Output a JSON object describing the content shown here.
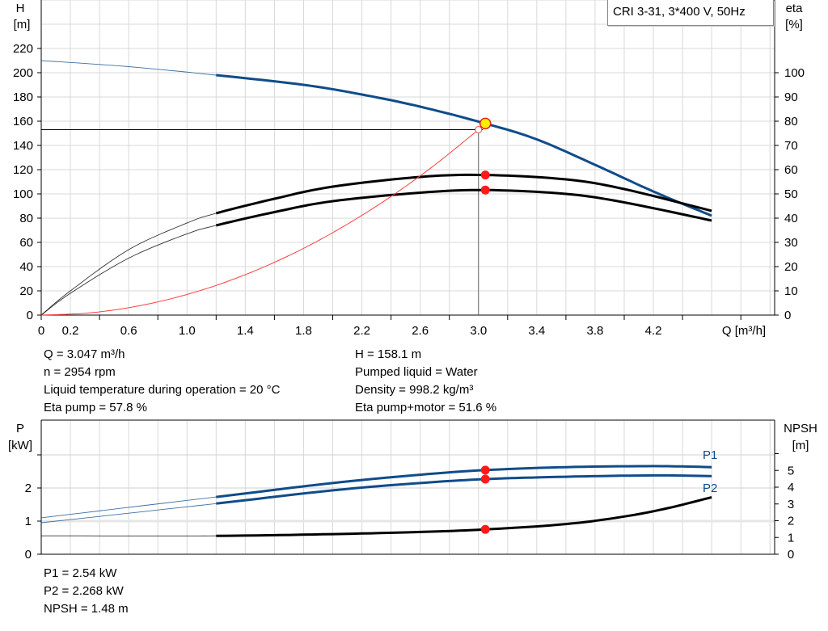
{
  "chart_data": [
    {
      "type": "line",
      "title": "CRI 3-31, 3*400 V, 50Hz",
      "xlabel": "Q [m³/h]",
      "ylabel_left": [
        "H",
        "[m]"
      ],
      "ylabel_right": [
        "eta",
        "[%]"
      ],
      "xlim": [
        0,
        5.0
      ],
      "ylim_left": [
        0,
        260
      ],
      "ylim_right": [
        0,
        130
      ],
      "x_ticks": [
        "0",
        "0.2",
        "0.6",
        "1.0",
        "1.4",
        "1.8",
        "2.2",
        "2.6",
        "3.0",
        "3.4",
        "3.8",
        "4.2"
      ],
      "x_tick_values": [
        0,
        0.2,
        0.6,
        1.0,
        1.4,
        1.8,
        2.2,
        2.6,
        3.0,
        3.4,
        3.8,
        4.2
      ],
      "y_left_ticks": [
        0,
        20,
        40,
        60,
        80,
        100,
        120,
        140,
        160,
        180,
        200,
        220
      ],
      "y_right_ticks": [
        0,
        10,
        20,
        30,
        40,
        50,
        60,
        70,
        80,
        90,
        100
      ],
      "grid": true,
      "series": [
        {
          "key": "H",
          "axis": "left",
          "color": "#0f4c8a",
          "thick_from": 1.2,
          "points": [
            [
              0,
              210
            ],
            [
              0.6,
              205
            ],
            [
              1.2,
              198
            ],
            [
              1.8,
              190
            ],
            [
              2.2,
              182
            ],
            [
              2.6,
              172
            ],
            [
              3.047,
              158.1
            ],
            [
              3.4,
              145
            ],
            [
              3.8,
              124
            ],
            [
              4.2,
              102
            ],
            [
              4.6,
              82
            ]
          ]
        },
        {
          "key": "eta_pump",
          "axis": "right",
          "color": "#000000",
          "thick_from": 1.2,
          "points": [
            [
              0,
              0
            ],
            [
              0.2,
              10
            ],
            [
              0.6,
              27
            ],
            [
              1.0,
              38
            ],
            [
              1.2,
              42
            ],
            [
              1.6,
              48
            ],
            [
              2.0,
              53
            ],
            [
              2.6,
              57
            ],
            [
              3.047,
              57.8
            ],
            [
              3.6,
              56
            ],
            [
              4.0,
              52
            ],
            [
              4.6,
              43
            ]
          ]
        },
        {
          "key": "eta_pump_motor",
          "axis": "right",
          "color": "#000000",
          "thick_from": 1.2,
          "points": [
            [
              0,
              0
            ],
            [
              0.2,
              9
            ],
            [
              0.6,
              23.5
            ],
            [
              1.0,
              33.5
            ],
            [
              1.2,
              37
            ],
            [
              1.6,
              42.5
            ],
            [
              2.0,
              47
            ],
            [
              2.6,
              50.5
            ],
            [
              3.047,
              51.6
            ],
            [
              3.6,
              50
            ],
            [
              4.0,
              46.5
            ],
            [
              4.6,
              39
            ]
          ]
        },
        {
          "key": "system_curve",
          "axis": "left",
          "color": "#ff4040",
          "thick_from": 99,
          "points": [
            [
              0,
              0
            ],
            [
              0.3,
              1.5
            ],
            [
              0.6,
              6.1
            ],
            [
              0.9,
              13.8
            ],
            [
              1.2,
              24.5
            ],
            [
              1.5,
              38.3
            ],
            [
              1.8,
              55.1
            ],
            [
              2.1,
              75
            ],
            [
              2.4,
              97.9
            ],
            [
              2.7,
              123.9
            ],
            [
              3.0,
              153
            ]
          ]
        }
      ],
      "duty_point": {
        "Q": 3.047,
        "H": 158.1,
        "eta_pump": 57.8,
        "eta_pump_motor": 51.6
      },
      "system_point": {
        "Q": 3.0,
        "H": 153
      }
    },
    {
      "type": "line",
      "xlim": [
        0,
        5.0
      ],
      "ylabel_left": [
        "P",
        "[kW]"
      ],
      "ylabel_right": [
        "NPSH",
        "[m]"
      ],
      "ylim_left": [
        0,
        4
      ],
      "ylim_right": [
        0,
        8
      ],
      "y_left_ticks": [
        0,
        1,
        2
      ],
      "y_right_ticks": [
        0,
        1,
        2,
        3,
        4,
        5
      ],
      "grid": true,
      "series": [
        {
          "name": "P1",
          "axis": "left",
          "color": "#0f4c8a",
          "thick_from": 1.2,
          "points": [
            [
              0,
              1.1
            ],
            [
              1.2,
              1.73
            ],
            [
              2.0,
              2.15
            ],
            [
              2.6,
              2.4
            ],
            [
              3.047,
              2.54
            ],
            [
              3.6,
              2.63
            ],
            [
              4.2,
              2.66
            ],
            [
              4.6,
              2.63
            ]
          ]
        },
        {
          "name": "P2",
          "axis": "left",
          "color": "#0f4c8a",
          "thick_from": 1.2,
          "points": [
            [
              0,
              0.95
            ],
            [
              1.2,
              1.53
            ],
            [
              2.0,
              1.93
            ],
            [
              2.6,
              2.15
            ],
            [
              3.047,
              2.268
            ],
            [
              3.6,
              2.34
            ],
            [
              4.2,
              2.38
            ],
            [
              4.6,
              2.36
            ]
          ]
        },
        {
          "key": "NPSH",
          "axis": "right",
          "color": "#000000",
          "thick_from": 1.2,
          "points": [
            [
              0,
              1.1
            ],
            [
              1.2,
              1.1
            ],
            [
              2.0,
              1.2
            ],
            [
              2.6,
              1.33
            ],
            [
              3.047,
              1.48
            ],
            [
              3.6,
              1.8
            ],
            [
              4.0,
              2.25
            ],
            [
              4.3,
              2.75
            ],
            [
              4.6,
              3.4
            ]
          ]
        }
      ],
      "duty_point": {
        "P1": 2.54,
        "P2": 2.268,
        "NPSH": 1.48
      }
    }
  ],
  "info_top_left": [
    "Q = 3.047 m³/h",
    "n = 2954 rpm",
    "Liquid temperature during operation = 20 °C",
    "Eta pump = 57.8 %"
  ],
  "info_top_right": [
    "H = 158.1 m",
    "Pumped liquid = Water",
    "Density = 998.2 kg/m³",
    "Eta pump+motor = 51.6 %"
  ],
  "info_bottom": [
    "P1 = 2.54 kW",
    "P2 = 2.268 kW",
    "NPSH = 1.48 m"
  ]
}
